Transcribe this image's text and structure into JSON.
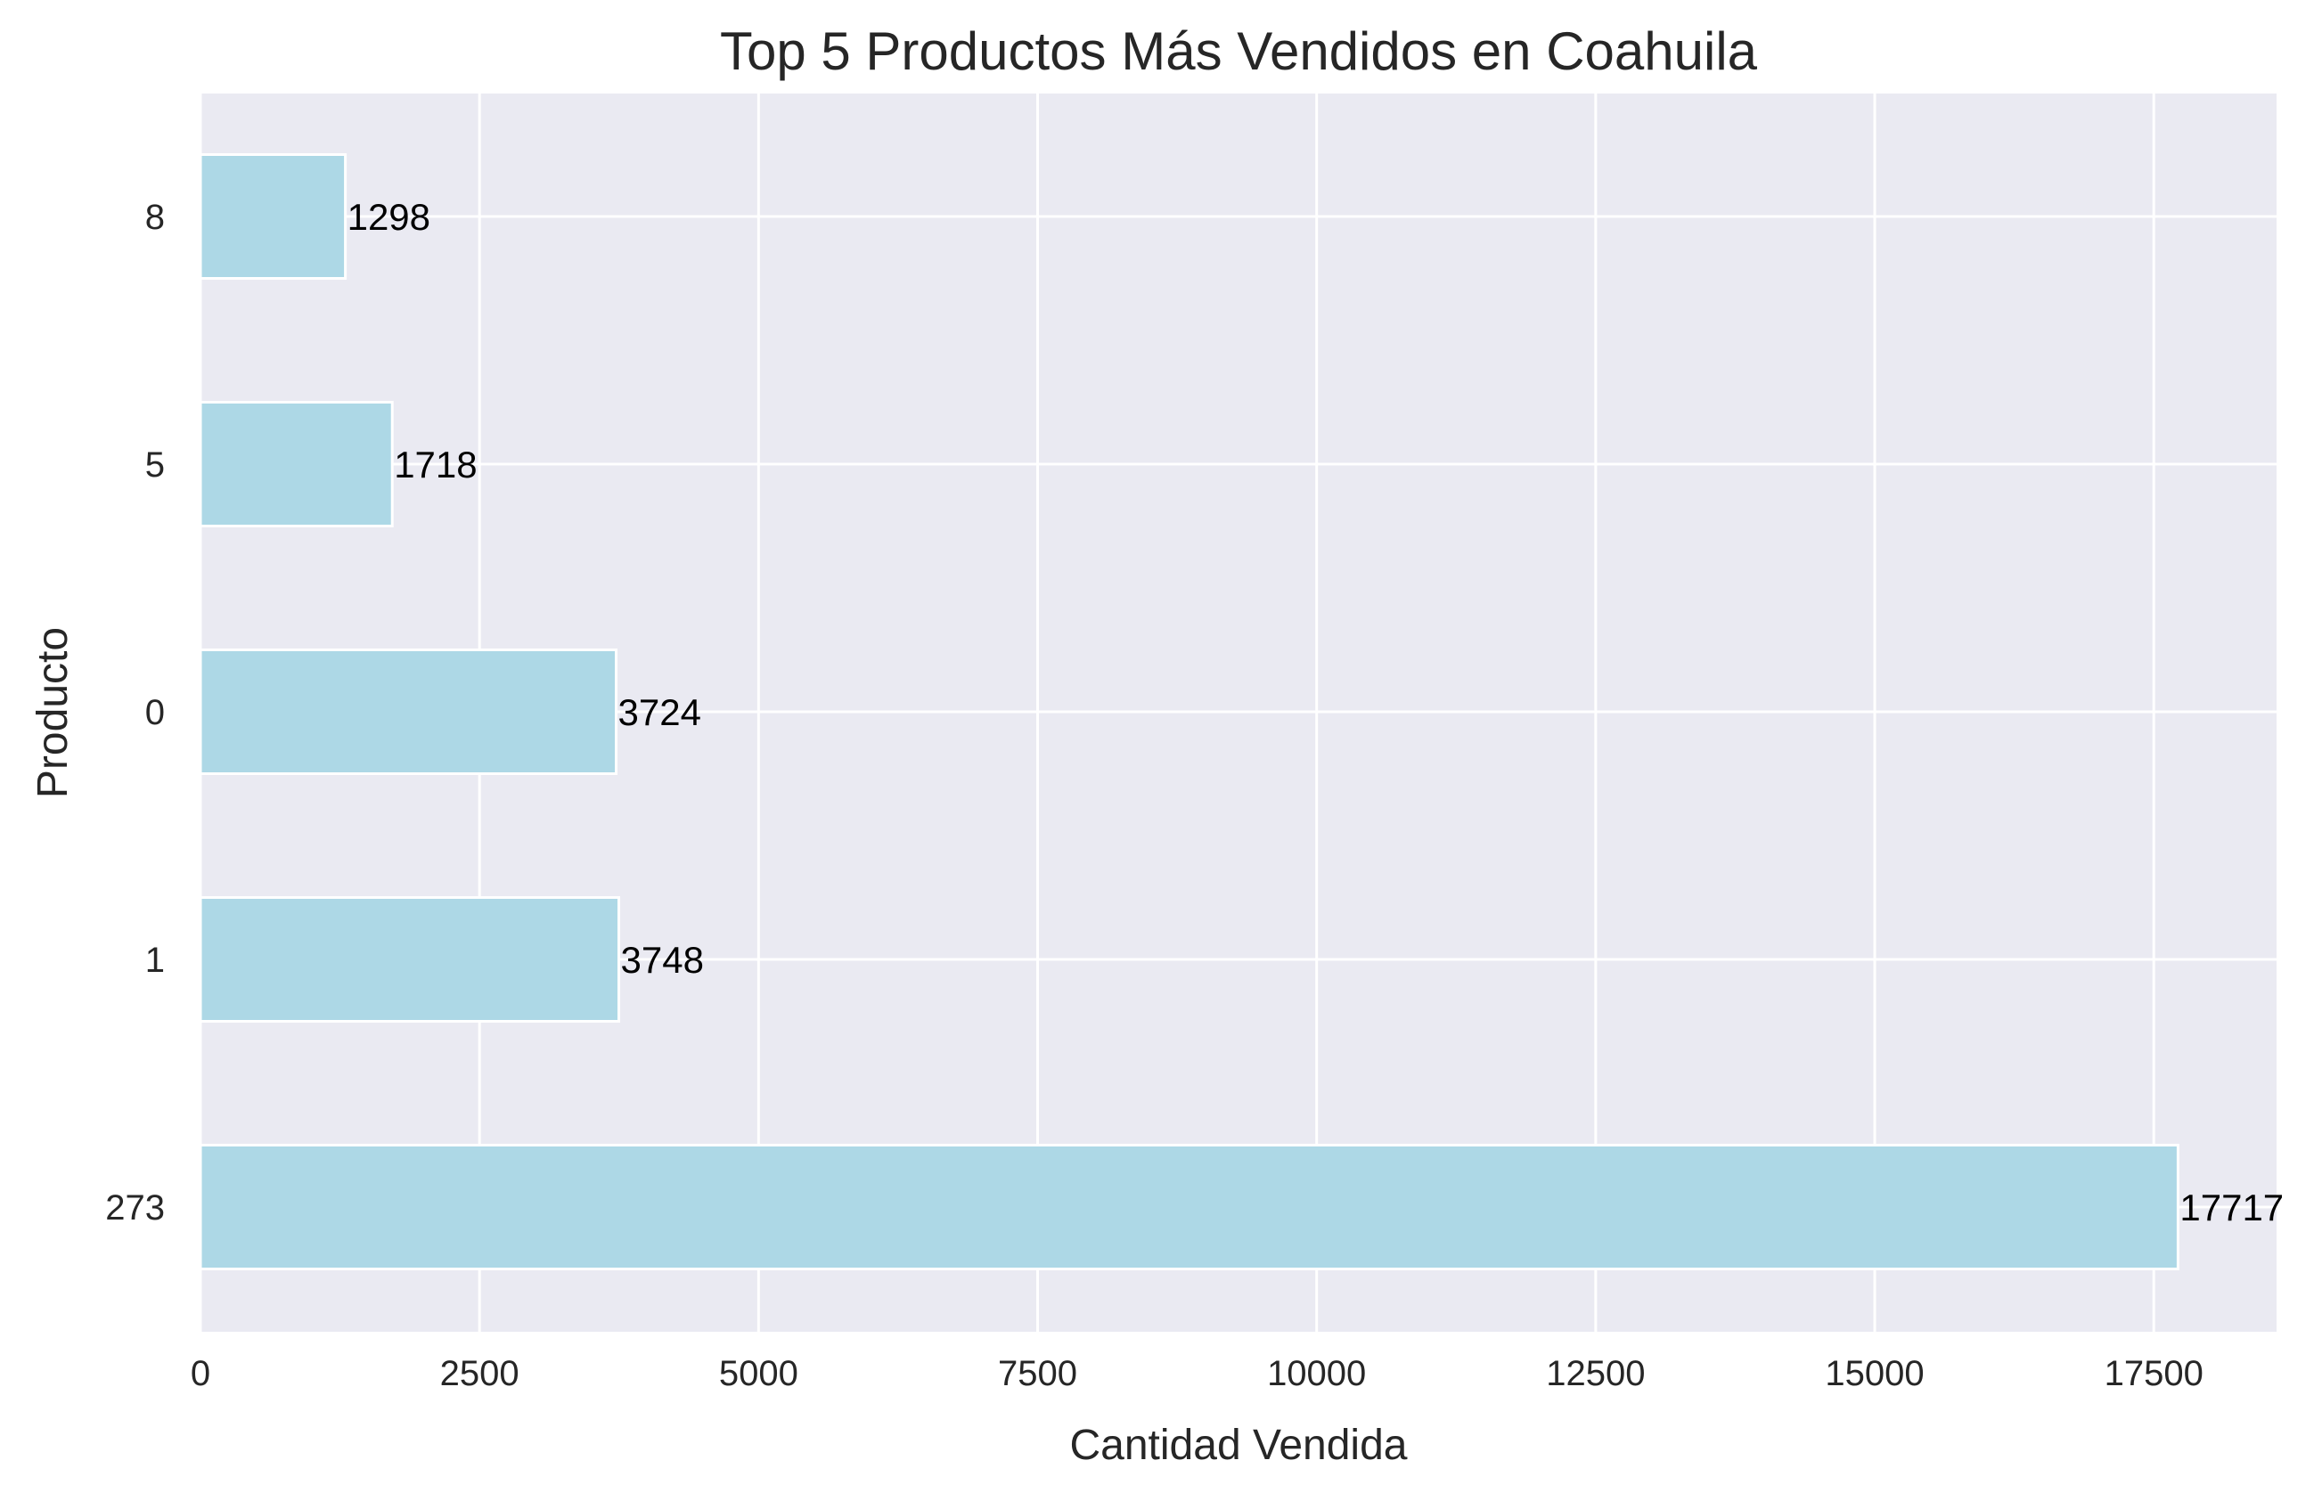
{
  "chart_data": {
    "type": "bar",
    "orientation": "horizontal",
    "title": "Top 5 Productos Más Vendidos en Coahuila",
    "xlabel": "Cantidad Vendida",
    "ylabel": "Producto",
    "categories": [
      "273",
      "1",
      "0",
      "5",
      "8"
    ],
    "values": [
      17717,
      3748,
      3724,
      1718,
      1298
    ],
    "data_labels": [
      "17717",
      "3748",
      "3724",
      "1718",
      "1298"
    ],
    "xlim": [
      0,
      18600
    ],
    "xticks": [
      0,
      2500,
      5000,
      7500,
      10000,
      12500,
      15000,
      17500
    ],
    "xtick_labels": [
      "0",
      "2500",
      "5000",
      "7500",
      "10000",
      "12500",
      "15000",
      "17500"
    ],
    "grid": true,
    "colors": {
      "bar": "#add8e6",
      "plot_background": "#eaeaf2",
      "grid": "#ffffff"
    }
  }
}
